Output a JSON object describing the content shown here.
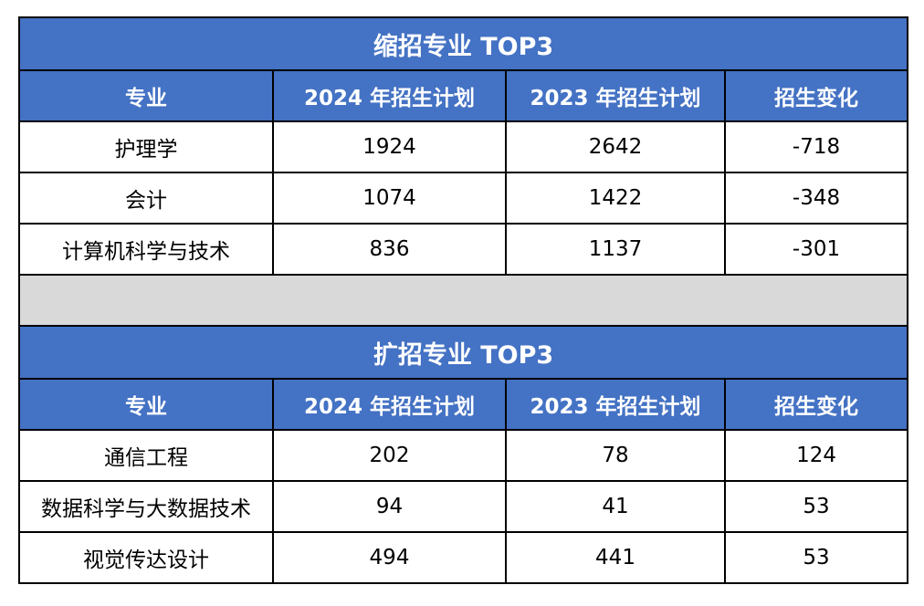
{
  "shrink": {
    "title": "缩招专业 TOP3",
    "headers": [
      "专业",
      "2024 年招生计划",
      "2023 年招生计划",
      "招生变化"
    ],
    "rows": [
      {
        "major": "护理学",
        "plan2024": "1924",
        "plan2023": "2642",
        "change": "-718"
      },
      {
        "major": "会计",
        "plan2024": "1074",
        "plan2023": "1422",
        "change": "-348"
      },
      {
        "major": "计算机科学与技术",
        "plan2024": "836",
        "plan2023": "1137",
        "change": "-301"
      }
    ]
  },
  "expand": {
    "title": "扩招专业 TOP3",
    "headers": [
      "专业",
      "2024 年招生计划",
      "2023 年招生计划",
      "招生变化"
    ],
    "rows": [
      {
        "major": "通信工程",
        "plan2024": "202",
        "plan2023": "78",
        "change": "124"
      },
      {
        "major": "数据科学与大数据技术",
        "plan2024": "94",
        "plan2023": "41",
        "change": "53"
      },
      {
        "major": "视觉传达设计",
        "plan2024": "494",
        "plan2023": "441",
        "change": "53"
      }
    ]
  },
  "colors": {
    "header_bg": "#4472c4",
    "header_text": "#ffffff",
    "gap_bg": "#d9d9d9"
  }
}
